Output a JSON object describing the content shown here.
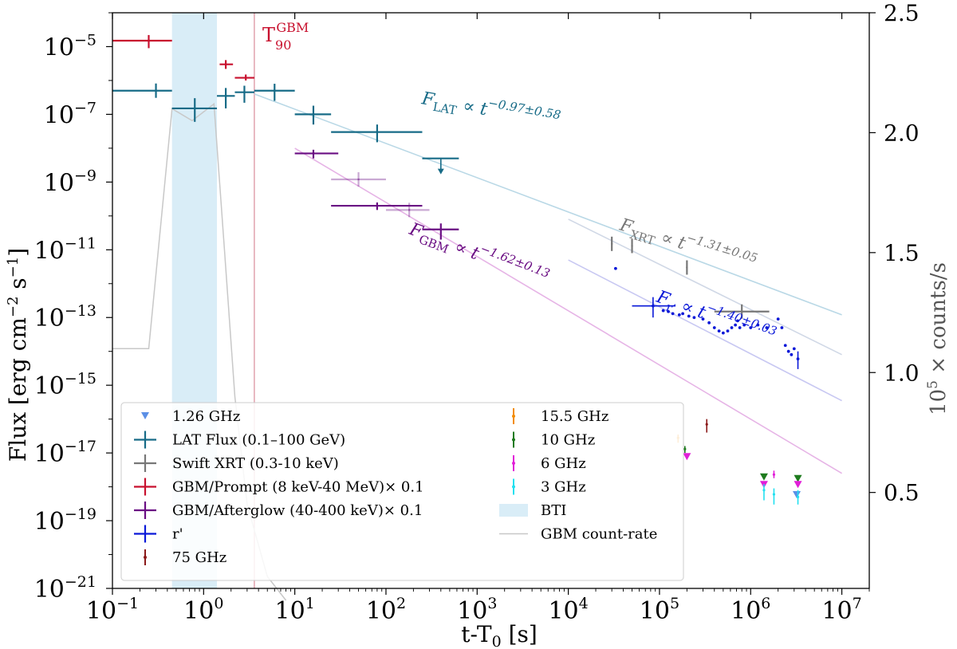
{
  "chart_data": {
    "type": "scatter",
    "title": "",
    "xlabel": "t-T0 [s]",
    "xlabel_main": "t-T",
    "xlabel_sub": "0",
    "xlabel_suffix": " [s]",
    "ylabel": "Flux [erg cm^-2 s^-1]",
    "ylabel_parts": {
      "a": "Flux [erg cm",
      "b": "−2",
      "c": " s",
      "d": "−1",
      "e": "]"
    },
    "y2label": "10^5 × counts/s",
    "y2label_parts": {
      "base": "10",
      "exp": "5",
      "rest": " × counts/s"
    },
    "xscale": "log",
    "yscale": "log",
    "xlim": [
      0.1,
      20000000
    ],
    "ylim": [
      1e-21,
      0.0001
    ],
    "y2lim": [
      0.1,
      2.5
    ],
    "x_ticks": [
      {
        "value": 0.1,
        "base": "10",
        "exp": "−1"
      },
      {
        "value": 1,
        "base": "10",
        "exp": "0"
      },
      {
        "value": 10,
        "base": "10",
        "exp": "1"
      },
      {
        "value": 100,
        "base": "10",
        "exp": "2"
      },
      {
        "value": 1000,
        "base": "10",
        "exp": "3"
      },
      {
        "value": 10000,
        "base": "10",
        "exp": "4"
      },
      {
        "value": 100000,
        "base": "10",
        "exp": "5"
      },
      {
        "value": 1000000,
        "base": "10",
        "exp": "6"
      },
      {
        "value": 10000000,
        "base": "10",
        "exp": "7"
      }
    ],
    "y_ticks": [
      {
        "value": 1e-05,
        "base": "10",
        "exp": "−5"
      },
      {
        "value": 1e-07,
        "base": "10",
        "exp": "−7"
      },
      {
        "value": 1e-09,
        "base": "10",
        "exp": "−9"
      },
      {
        "value": 1e-11,
        "base": "10",
        "exp": "−11"
      },
      {
        "value": 1e-13,
        "base": "10",
        "exp": "−13"
      },
      {
        "value": 1e-15,
        "base": "10",
        "exp": "−15"
      },
      {
        "value": 1e-17,
        "base": "10",
        "exp": "−17"
      },
      {
        "value": 1e-19,
        "base": "10",
        "exp": "−19"
      },
      {
        "value": 1e-21,
        "base": "10",
        "exp": "−21"
      }
    ],
    "y2_ticks": [
      {
        "value": 2.5,
        "label": "2.5"
      },
      {
        "value": 2.0,
        "label": "2.0"
      },
      {
        "value": 1.5,
        "label": "1.5"
      },
      {
        "value": 1.0,
        "label": "1.0"
      },
      {
        "value": 0.5,
        "label": "0.5"
      }
    ],
    "bti": {
      "x0": 0.45,
      "x1": 1.4,
      "color": "#d9edf7",
      "label": "BTI"
    },
    "t90": {
      "x": 3.6,
      "label_main": "T",
      "label_sub": "90",
      "label_sup": "GBM",
      "color": "#c8102e"
    },
    "gbm_count_rate": {
      "label": "GBM count-rate",
      "color": "#c8c8c8",
      "points": [
        [
          0.1,
          1.1
        ],
        [
          0.25,
          1.1
        ],
        [
          0.45,
          2.1
        ],
        [
          0.75,
          2.05
        ],
        [
          1.3,
          2.12
        ],
        [
          1.7,
          1.5
        ],
        [
          2.2,
          0.9
        ],
        [
          3.0,
          0.45
        ],
        [
          5.0,
          0.15
        ],
        [
          8.0,
          0.05
        ]
      ]
    },
    "series": [
      {
        "name": "LAT Flux (0.1–100 GeV)",
        "color": "#176b87",
        "marker": "cross",
        "points": [
          {
            "x": 0.3,
            "y": 5e-07,
            "xlo": 0.1,
            "xhi": 0.45
          },
          {
            "x": 0.8,
            "y": 1.5e-07,
            "xlo": 0.45,
            "xhi": 1.4,
            "ylo": 6e-08,
            "yhi": 3e-07
          },
          {
            "x": 1.75,
            "y": 3.5e-07,
            "xlo": 1.4,
            "xhi": 2.2,
            "ylo": 1.5e-07,
            "yhi": 6e-07
          },
          {
            "x": 2.8,
            "y": 4.5e-07,
            "xlo": 2.2,
            "xhi": 3.6,
            "ylo": 2.2e-07,
            "yhi": 7e-07
          },
          {
            "x": 6.0,
            "y": 5e-07,
            "xlo": 3.6,
            "xhi": 10.0,
            "ylo": 2.5e-07,
            "yhi": 8e-07
          },
          {
            "x": 16.0,
            "y": 1e-07,
            "xlo": 10.0,
            "xhi": 25.0,
            "ylo": 5e-08,
            "yhi": 1.8e-07
          },
          {
            "x": 80.0,
            "y": 3e-08,
            "xlo": 25.0,
            "xhi": 250.0,
            "ylo": 1.5e-08,
            "yhi": 5e-08
          },
          {
            "x": 400.0,
            "y": 5e-09,
            "xlo": 250.0,
            "xhi": 630.0,
            "ul": true
          }
        ]
      },
      {
        "name": "Swift XRT (0.3-10 keV)",
        "color": "#777777",
        "marker": "cross",
        "points": [
          {
            "x": 30000,
            "y": 1.5e-11
          },
          {
            "x": 50000,
            "y": 1.3e-11
          },
          {
            "x": 200000,
            "y": 3e-12
          },
          {
            "x": 800000,
            "y": 1.5e-13,
            "xlo": 400000,
            "xhi": 1600000
          }
        ]
      },
      {
        "name": "GBM/Prompt (8 keV-40 MeV)× 0.1",
        "color": "#c8102e",
        "marker": "cross",
        "points": [
          {
            "x": 0.25,
            "y": 1.5e-05,
            "xlo": 0.1,
            "xhi": 0.45,
            "ylo": 9e-06,
            "yhi": 2.2e-05
          },
          {
            "x": 1.75,
            "y": 3e-06,
            "xlo": 1.5,
            "xhi": 2.1,
            "ylo": 2.2e-06,
            "yhi": 4e-06
          },
          {
            "x": 2.9,
            "y": 1.2e-06,
            "xlo": 2.2,
            "xhi": 3.6,
            "ylo": 1e-06,
            "yhi": 1.5e-06
          }
        ]
      },
      {
        "name": "GBM/Afterglow (40-400 keV)× 0.1",
        "color": "#6a0d83",
        "marker": "cross",
        "points": [
          {
            "x": 16.0,
            "y": 7e-09,
            "xlo": 10.0,
            "xhi": 30.0,
            "ylo": 5e-09,
            "yhi": 9e-09
          },
          {
            "x": 50.0,
            "y": 1.2e-09,
            "xlo": 25.0,
            "xhi": 100.0,
            "faint": true
          },
          {
            "x": 80.0,
            "y": 2e-10,
            "xlo": 25.0,
            "xhi": 250.0,
            "ylo": 1.5e-10,
            "yhi": 2.5e-10
          },
          {
            "x": 180.0,
            "y": 1.5e-10,
            "xlo": 100.0,
            "xhi": 300.0,
            "faint": true
          },
          {
            "x": 400.0,
            "y": 4e-11,
            "xlo": 250.0,
            "xhi": 630.0,
            "ylo": 2e-11,
            "yhi": 6e-11
          }
        ]
      },
      {
        "name": "r'",
        "color": "#0a18d8",
        "marker": "dot",
        "points": [
          {
            "x": 33000,
            "y": 2.8e-12
          },
          {
            "x": 85000,
            "y": 2.2e-13,
            "xlo": 50000,
            "xhi": 150000,
            "ylo": 1e-13,
            "yhi": 4e-13
          },
          {
            "x": 110000,
            "y": 1.6e-13
          },
          {
            "x": 125000,
            "y": 1.5e-13
          },
          {
            "x": 140000,
            "y": 1.3e-13
          },
          {
            "x": 165000,
            "y": 1.2e-13
          },
          {
            "x": 180000,
            "y": 1.3e-13
          },
          {
            "x": 210000,
            "y": 1.1e-13
          },
          {
            "x": 240000,
            "y": 1e-13
          },
          {
            "x": 300000,
            "y": 9e-14
          },
          {
            "x": 350000,
            "y": 7e-14
          },
          {
            "x": 400000,
            "y": 5e-14
          },
          {
            "x": 450000,
            "y": 4e-14
          },
          {
            "x": 500000,
            "y": 3.5e-14
          },
          {
            "x": 560000,
            "y": 4e-14
          },
          {
            "x": 620000,
            "y": 5e-14
          },
          {
            "x": 680000,
            "y": 6e-14
          },
          {
            "x": 720000,
            "y": 8e-14
          },
          {
            "x": 760000,
            "y": 5e-14
          },
          {
            "x": 850000,
            "y": 6e-14
          },
          {
            "x": 1000000,
            "y": 5e-14
          },
          {
            "x": 1200000,
            "y": 6e-14
          },
          {
            "x": 1500000,
            "y": 5e-14
          },
          {
            "x": 2000000,
            "y": 9e-14
          },
          {
            "x": 2200000,
            "y": 5e-14
          },
          {
            "x": 2400000,
            "y": 1.5e-14
          },
          {
            "x": 2600000,
            "y": 1e-14
          },
          {
            "x": 2800000,
            "y": 8e-15
          },
          {
            "x": 3000000,
            "y": 1.2e-14
          },
          {
            "x": 3300000,
            "y": 6e-15,
            "ylo": 3e-15,
            "yhi": 1e-14
          }
        ]
      },
      {
        "name": "75 GHz",
        "color": "#8b1a1a",
        "marker": "dash",
        "points": [
          {
            "x": 330000,
            "y": 7e-17,
            "ylo": 4e-17,
            "yhi": 1e-16
          }
        ]
      },
      {
        "name": "1.26 GHz",
        "color": "#5b8fe6",
        "marker": "triangle",
        "points": [
          {
            "x": 3200000,
            "y": 6e-19
          }
        ]
      },
      {
        "name": "15.5 GHz",
        "color": "#f28c00",
        "marker": "dash",
        "points": [
          {
            "x": 160000,
            "y": 2.8e-17,
            "ylo": 2e-17,
            "yhi": 3.5e-17
          }
        ]
      },
      {
        "name": "10 GHz",
        "color": "#1e7b1e",
        "marker": "triangle",
        "points": [
          {
            "x": 190000,
            "y": 1.3e-17,
            "ylo": 1e-17,
            "yhi": 1.6e-17
          },
          {
            "x": 1400000,
            "y": 2e-18,
            "ul": true
          },
          {
            "x": 3300000,
            "y": 1.8e-18,
            "ul": true
          }
        ]
      },
      {
        "name": "6 GHz",
        "color": "#e11ed8",
        "marker": "triangle",
        "points": [
          {
            "x": 200000,
            "y": 8e-18
          },
          {
            "x": 1400000,
            "y": 1.2e-18,
            "ul": true
          },
          {
            "x": 1800000,
            "y": 2.3e-18,
            "ylo": 1.8e-18,
            "yhi": 3e-18
          },
          {
            "x": 3300000,
            "y": 1.2e-18,
            "ul": true
          }
        ]
      },
      {
        "name": "3 GHz",
        "color": "#22e0f0",
        "marker": "dash",
        "points": [
          {
            "x": 1400000,
            "y": 8e-19,
            "ylo": 4e-19,
            "yhi": 1.2e-18
          },
          {
            "x": 1800000,
            "y": 6e-19,
            "ylo": 3e-19,
            "yhi": 9e-19
          },
          {
            "x": 3300000,
            "y": 5e-19,
            "ylo": 3e-19,
            "yhi": 8e-19
          }
        ]
      }
    ],
    "fit_lines": [
      {
        "name": "F_LAT",
        "color": "#b9d8e6",
        "x0": 3.6,
        "y0": 4e-07,
        "x1": 10000000,
        "y1": 1.2e-13
      },
      {
        "name": "F_GBM",
        "color": "#e6b4e6",
        "x0": 10.0,
        "y0": 1e-08,
        "x1": 10000000,
        "y1": 2.5e-18
      },
      {
        "name": "F_XRT",
        "color": "#d0d8e6",
        "x0": 10000,
        "y0": 8e-11,
        "x1": 10000000,
        "y1": 8e-15
      },
      {
        "name": "F_r",
        "color": "#c8c8f2",
        "x0": 10000,
        "y0": 5e-12,
        "x1": 10000000,
        "y1": 3.5e-16
      }
    ],
    "fit_labels": [
      {
        "id": "lat",
        "letter": "F",
        "sub": "LAT",
        "mid": " ∝ t",
        "sup": "−0.97±0.58",
        "color": "#176b87",
        "angle": 10
      },
      {
        "id": "gbm",
        "letter": "F",
        "sub": "GBM",
        "mid": " ∝ t",
        "sup": "−1.62±0.13",
        "color": "#6a0d83",
        "angle": 21
      },
      {
        "id": "xrt",
        "letter": "F",
        "sub": "XRT",
        "mid": " ∝ t",
        "sup": "−1.31±0.05",
        "color": "#777777",
        "angle": 17
      },
      {
        "id": "r",
        "letter": "F",
        "sub": "r′",
        "mid": " ∝ t",
        "sup": "−1.40±0.03",
        "color": "#0a18d8",
        "angle": 20
      }
    ],
    "legend": {
      "placement": "lower-left",
      "col1": [
        {
          "label": "1.26 GHz",
          "color": "#5b8fe6",
          "marker": "triangle"
        },
        {
          "label": "LAT Flux (0.1–100 GeV)",
          "color": "#176b87",
          "marker": "cross"
        },
        {
          "label": "Swift XRT (0.3-10 keV)",
          "color": "#777777",
          "marker": "cross"
        },
        {
          "label": "GBM/Prompt (8 keV-40 MeV)× 0.1",
          "color": "#c8102e",
          "marker": "cross"
        },
        {
          "label": "GBM/Afterglow (40-400 keV)× 0.1",
          "color": "#6a0d83",
          "marker": "cross"
        },
        {
          "label": "r'",
          "color": "#0a18d8",
          "marker": "cross"
        },
        {
          "label": "75 GHz",
          "color": "#8b1a1a",
          "marker": "dash"
        }
      ],
      "col2": [
        {
          "label": "15.5 GHz",
          "color": "#f28c00",
          "marker": "dash"
        },
        {
          "label": "10 GHz",
          "color": "#1e7b1e",
          "marker": "dash"
        },
        {
          "label": "6 GHz",
          "color": "#e11ed8",
          "marker": "dash"
        },
        {
          "label": "3 GHz",
          "color": "#22e0f0",
          "marker": "dash"
        },
        {
          "label": "BTI",
          "color": "#d9edf7",
          "marker": "patch"
        },
        {
          "label": "GBM count-rate",
          "color": "#c8c8c8",
          "marker": "line"
        }
      ]
    }
  }
}
